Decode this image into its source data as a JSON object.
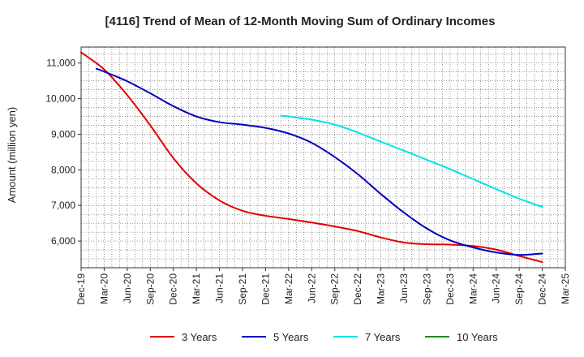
{
  "chart_data": {
    "type": "line",
    "title": "[4116]  Trend of Mean of 12-Month Moving Sum of Ordinary Incomes",
    "xlabel": "",
    "ylabel": "Amount (million yen)",
    "ylim": [
      5250,
      11450
    ],
    "yticks": [
      6000,
      7000,
      8000,
      9000,
      10000,
      11000
    ],
    "ytick_labels": [
      "6,000",
      "7,000",
      "8,000",
      "9,000",
      "10,000",
      "11,000"
    ],
    "x_range_months": [
      0,
      63
    ],
    "xticks": [
      "Dec-19",
      "Mar-20",
      "Jun-20",
      "Sep-20",
      "Dec-20",
      "Mar-21",
      "Jun-21",
      "Sep-21",
      "Dec-21",
      "Mar-22",
      "Jun-22",
      "Sep-22",
      "Dec-22",
      "Mar-23",
      "Jun-23",
      "Sep-23",
      "Dec-23",
      "Mar-24",
      "Jun-24",
      "Sep-24",
      "Dec-24",
      "Mar-25"
    ],
    "grid": true,
    "legend_position": "bottom",
    "series": [
      {
        "name": "3 Years",
        "color": "#e00000",
        "x": [
          0,
          3,
          6,
          9,
          12,
          15,
          18,
          21,
          24,
          27,
          30,
          33,
          36,
          39,
          42,
          45,
          48,
          51,
          54,
          57,
          60
        ],
        "values": [
          11300,
          10820,
          10100,
          9250,
          8330,
          7620,
          7140,
          6850,
          6710,
          6620,
          6520,
          6410,
          6280,
          6100,
          5960,
          5910,
          5900,
          5860,
          5760,
          5580,
          5410
        ]
      },
      {
        "name": "5 Years",
        "color": "#0000c0",
        "x": [
          2,
          3,
          6,
          9,
          12,
          15,
          18,
          21,
          24,
          27,
          30,
          33,
          36,
          39,
          42,
          45,
          48,
          51,
          54,
          57,
          60
        ],
        "values": [
          10840,
          10760,
          10490,
          10150,
          9790,
          9500,
          9340,
          9270,
          9180,
          9020,
          8760,
          8360,
          7880,
          7320,
          6800,
          6350,
          6020,
          5820,
          5680,
          5610,
          5650
        ]
      },
      {
        "name": "7 Years",
        "color": "#00e5e5",
        "x": [
          26,
          27,
          30,
          33,
          36,
          39,
          42,
          45,
          48,
          51,
          54,
          57,
          60
        ],
        "values": [
          9520,
          9500,
          9410,
          9270,
          9050,
          8790,
          8540,
          8280,
          8020,
          7740,
          7460,
          7190,
          6960
        ]
      },
      {
        "name": "10 Years",
        "color": "#228b22",
        "x": [],
        "values": []
      }
    ]
  }
}
